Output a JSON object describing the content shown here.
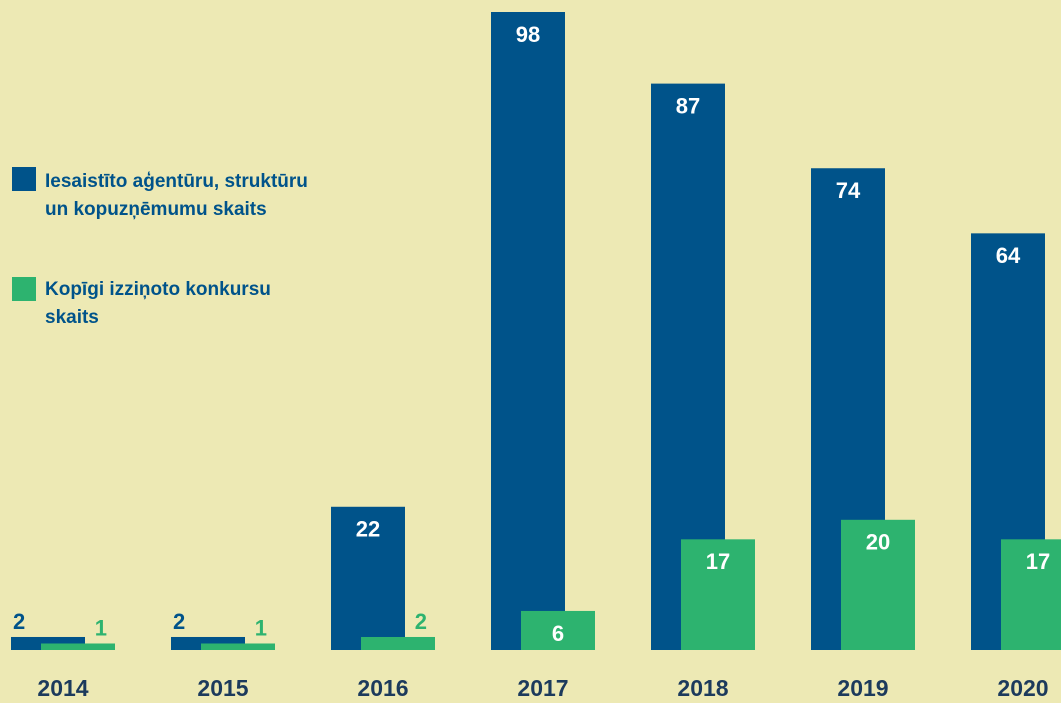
{
  "chart_data": {
    "type": "bar",
    "categories": [
      "2014",
      "2015",
      "2016",
      "2017",
      "2018",
      "2019",
      "2020"
    ],
    "series": [
      {
        "name": "Iesaistīto aģentūru, struktūru un kopuzņēmumu skaits",
        "color": "#00538a",
        "values": [
          2,
          2,
          22,
          98,
          87,
          74,
          64
        ]
      },
      {
        "name": "Kopīgi izziņoto konkursu skaits",
        "color": "#2db36f",
        "values": [
          1,
          1,
          2,
          6,
          17,
          20,
          17
        ]
      }
    ]
  }
}
